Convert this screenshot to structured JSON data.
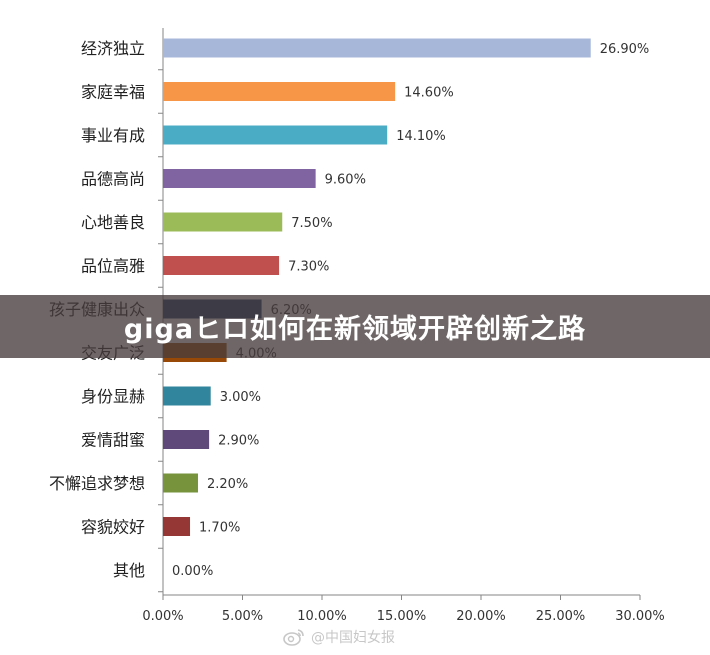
{
  "overlay_title": "gigaヒロ如何在新领域开辟创新之路",
  "watermark": {
    "text": "@中国妇女报",
    "icon": "weibo-icon"
  },
  "chart_data": {
    "type": "bar",
    "orientation": "horizontal",
    "categories": [
      "经济独立",
      "家庭幸福",
      "事业有成",
      "品德高尚",
      "心地善良",
      "品位高雅",
      "孩子健康出众",
      "交友广泛",
      "身份显赫",
      "爱情甜蜜",
      "不懈追求梦想",
      "容貌姣好",
      "其他"
    ],
    "values": [
      26.9,
      14.6,
      14.1,
      9.6,
      7.5,
      7.3,
      6.2,
      4.0,
      3.0,
      2.9,
      2.2,
      1.7,
      0.0
    ],
    "value_labels": [
      "26.90%",
      "14.60%",
      "14.10%",
      "9.60%",
      "7.50%",
      "7.30%",
      "6.20%",
      "4.00%",
      "3.00%",
      "2.90%",
      "2.20%",
      "1.70%",
      "0.00%"
    ],
    "colors": [
      "#a7b7d9",
      "#f79646",
      "#4bacc6",
      "#8064a2",
      "#9bbb59",
      "#c0504d",
      "#1f3864",
      "#984807",
      "#31859c",
      "#5f497a",
      "#77933c",
      "#953735",
      "#ffffff"
    ],
    "xlim": [
      0,
      30
    ],
    "xticks": [
      "0.00%",
      "5.00%",
      "10.00%",
      "15.00%",
      "20.00%",
      "25.00%",
      "30.00%"
    ],
    "grid": false,
    "title": "",
    "xlabel": "",
    "ylabel": ""
  }
}
